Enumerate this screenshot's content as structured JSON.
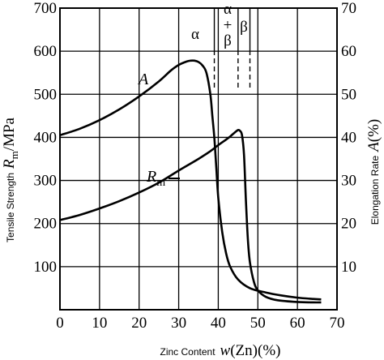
{
  "chart_data": {
    "type": "line",
    "title": "",
    "xlabel": {
      "prefix": "Zinc Content",
      "variable": "w",
      "paren": "(Zn)(%)"
    },
    "ylabel_left": {
      "prefix": "Tensile Strength",
      "symbol": "R",
      "sub": "m",
      "unit": "/MPa"
    },
    "ylabel_right": {
      "prefix": "Elongation Rate",
      "symbol": "A",
      "unit": "(%)"
    },
    "xlim": [
      0,
      70
    ],
    "ylim_left": [
      0,
      700
    ],
    "ylim_right": [
      0,
      70
    ],
    "x_ticks": [
      "0",
      "10",
      "20",
      "30",
      "40",
      "50",
      "60",
      "70"
    ],
    "y_ticks_left": [
      "100",
      "200",
      "300",
      "400",
      "500",
      "600",
      "700"
    ],
    "y_ticks_right": [
      "10",
      "20",
      "30",
      "40",
      "50",
      "60",
      "70"
    ],
    "grid": true,
    "phase_labels": {
      "alpha": "α",
      "alpha_beta_top": "α",
      "alpha_beta_plus": "+",
      "alpha_beta_bottom": "β",
      "beta": "β"
    },
    "phase_boundaries": [
      39,
      45,
      48
    ],
    "series": [
      {
        "name": "A",
        "axis": "right",
        "x": [
          0,
          5,
          10,
          15,
          20,
          25,
          28,
          30,
          32,
          33,
          34,
          35,
          36,
          37,
          38,
          38.5,
          39,
          39.5,
          40,
          41,
          42,
          43,
          45,
          48,
          52,
          56,
          60,
          64,
          66
        ],
        "y": [
          40.5,
          42,
          44,
          46.5,
          49.5,
          53,
          55.5,
          56.8,
          57.6,
          57.8,
          57.8,
          57.5,
          56.7,
          55,
          50,
          45,
          40,
          33,
          26,
          18,
          13,
          10,
          7,
          5,
          4,
          3.3,
          2.8,
          2.5,
          2.4
        ]
      },
      {
        "name": "R",
        "name_sub": "m",
        "axis": "left",
        "x": [
          0,
          5,
          10,
          15,
          20,
          25,
          30,
          35,
          38,
          40,
          42,
          43,
          44,
          45,
          45.5,
          46,
          46.5,
          47,
          47.5,
          48,
          49,
          50,
          52,
          55,
          60,
          64,
          66
        ],
        "y": [
          208,
          220,
          235,
          252,
          272,
          295,
          323,
          350,
          368,
          382,
          395,
          402,
          410,
          417,
          415,
          405,
          360,
          250,
          160,
          110,
          65,
          45,
          30,
          22,
          18,
          17,
          17
        ]
      }
    ]
  }
}
